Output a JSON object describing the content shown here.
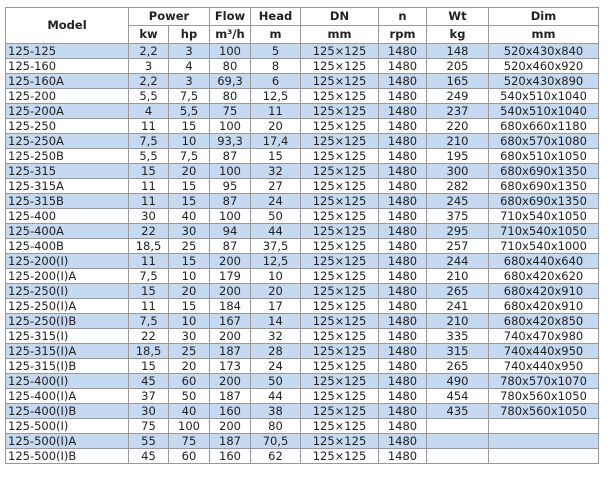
{
  "header": {
    "model": "Model",
    "groups": [
      "Power",
      "Flow",
      "Head",
      "DN",
      "n",
      "Wt",
      "Dim"
    ],
    "units": [
      "kw",
      "hp",
      "m³/h",
      "m",
      "mm",
      "rpm",
      "kg",
      "mm"
    ]
  },
  "accent": "#c5d9f1",
  "rows": [
    [
      "125-125",
      "2,2",
      "3",
      "100",
      "5",
      "125×125",
      "1480",
      "148",
      "520x430x840"
    ],
    [
      "125-160",
      "3",
      "4",
      "80",
      "8",
      "125×125",
      "1480",
      "205",
      "520x460x920"
    ],
    [
      "125-160A",
      "2,2",
      "3",
      "69,3",
      "6",
      "125×125",
      "1480",
      "165",
      "520x430x890"
    ],
    [
      "125-200",
      "5,5",
      "7,5",
      "80",
      "12,5",
      "125×125",
      "1480",
      "249",
      "540x510x1040"
    ],
    [
      "125-200A",
      "4",
      "5,5",
      "75",
      "11",
      "125×125",
      "1480",
      "237",
      "540x510x1040"
    ],
    [
      "125-250",
      "11",
      "15",
      "100",
      "20",
      "125×125",
      "1480",
      "220",
      "680x660x1180"
    ],
    [
      "125-250A",
      "7,5",
      "10",
      "93,3",
      "17,4",
      "125×125",
      "1480",
      "210",
      "680x570x1080"
    ],
    [
      "125-250B",
      "5,5",
      "7,5",
      "87",
      "15",
      "125×125",
      "1480",
      "195",
      "680x510x1050"
    ],
    [
      "125-315",
      "15",
      "20",
      "100",
      "32",
      "125×125",
      "1480",
      "300",
      "680x690x1350"
    ],
    [
      "125-315A",
      "11",
      "15",
      "95",
      "27",
      "125×125",
      "1480",
      "282",
      "680x690x1350"
    ],
    [
      "125-315B",
      "11",
      "15",
      "87",
      "24",
      "125×125",
      "1480",
      "245",
      "680x690x1350"
    ],
    [
      "125-400",
      "30",
      "40",
      "100",
      "50",
      "125×125",
      "1480",
      "375",
      "710x540x1050"
    ],
    [
      "125-400A",
      "22",
      "30",
      "94",
      "44",
      "125×125",
      "1480",
      "295",
      "710x540x1050"
    ],
    [
      "125-400B",
      "18,5",
      "25",
      "87",
      "37,5",
      "125×125",
      "1480",
      "257",
      "710x540x1000"
    ],
    [
      "125-200(I)",
      "11",
      "15",
      "200",
      "12,5",
      "125×125",
      "1480",
      "244",
      "680x440x640"
    ],
    [
      "125-200(I)A",
      "7,5",
      "10",
      "179",
      "10",
      "125×125",
      "1480",
      "210",
      "680x420x620"
    ],
    [
      "125-250(I)",
      "15",
      "20",
      "200",
      "20",
      "125×125",
      "1480",
      "265",
      "680x420x910"
    ],
    [
      "125-250(I)A",
      "11",
      "15",
      "184",
      "17",
      "125×125",
      "1480",
      "241",
      "680x420x910"
    ],
    [
      "125-250(I)B",
      "7,5",
      "10",
      "167",
      "14",
      "125×125",
      "1480",
      "210",
      "680x420x850"
    ],
    [
      "125-315(I)",
      "22",
      "30",
      "200",
      "32",
      "125×125",
      "1480",
      "335",
      "740x470x980"
    ],
    [
      "125-315(I)A",
      "18,5",
      "25",
      "187",
      "28",
      "125×125",
      "1480",
      "315",
      "740x440x950"
    ],
    [
      "125-315(I)B",
      "15",
      "20",
      "173",
      "24",
      "125×125",
      "1480",
      "265",
      "740x440x950"
    ],
    [
      "125-400(I)",
      "45",
      "60",
      "200",
      "50",
      "125×125",
      "1480",
      "490",
      "780x570x1070"
    ],
    [
      "125-400(I)A",
      "37",
      "50",
      "187",
      "44",
      "125×125",
      "1480",
      "454",
      "780x560x1050"
    ],
    [
      "125-400(I)B",
      "30",
      "40",
      "160",
      "38",
      "125×125",
      "1480",
      "435",
      "780x560x1050"
    ],
    [
      "125-500(I)",
      "75",
      "100",
      "200",
      "80",
      "125×125",
      "1480",
      "",
      ""
    ],
    [
      "125-500(I)A",
      "55",
      "75",
      "187",
      "70,5",
      "125×125",
      "1480",
      "",
      ""
    ],
    [
      "125-500(I)B",
      "45",
      "60",
      "160",
      "62",
      "125×125",
      "1480",
      "",
      ""
    ]
  ]
}
